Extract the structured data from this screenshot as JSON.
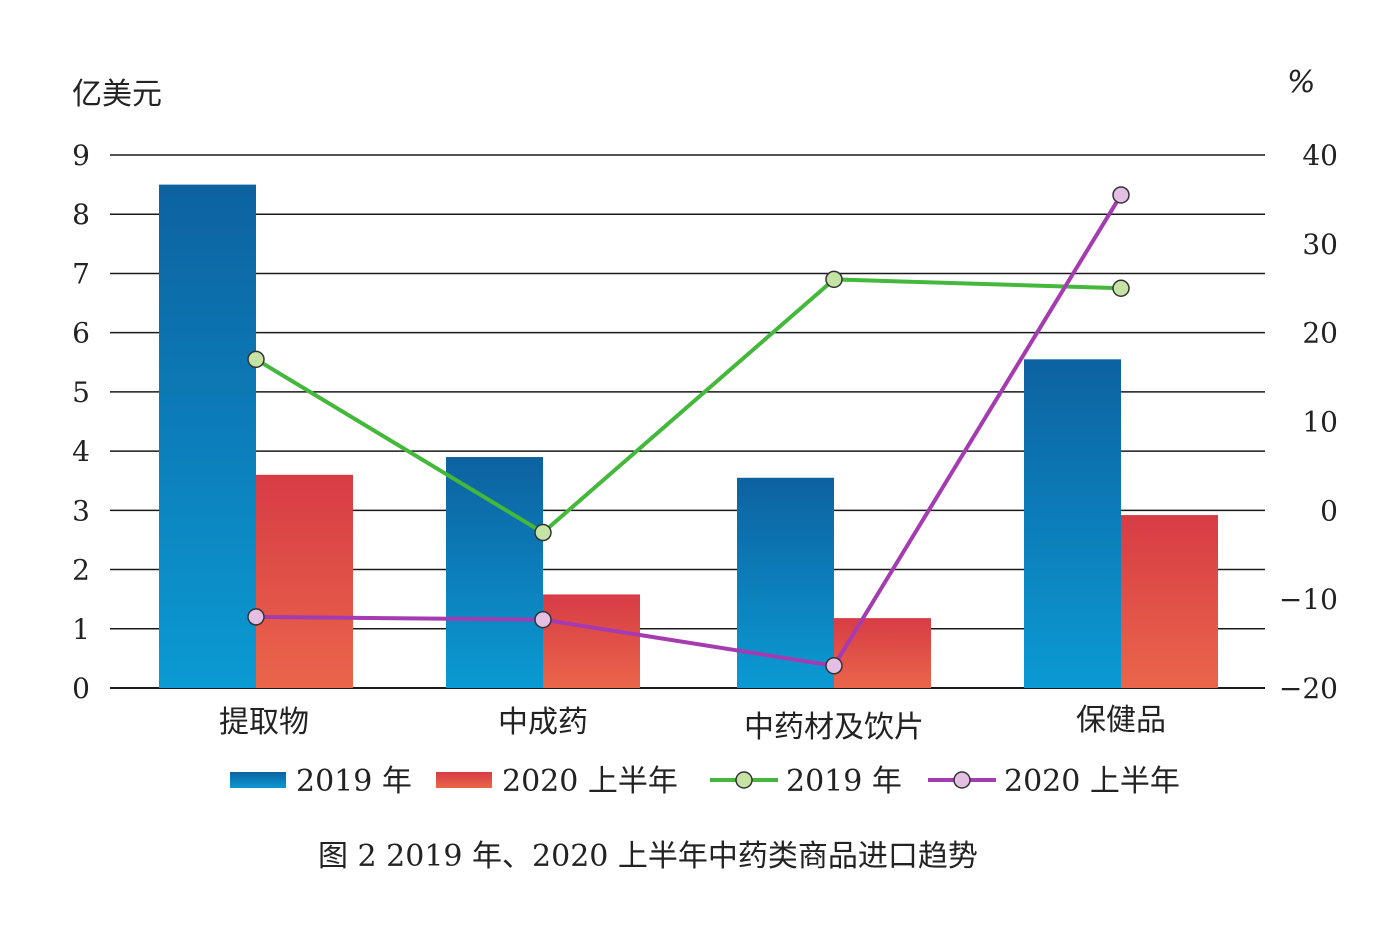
{
  "caption": "图 2   2019 年、2020 上半年中药类商品进口趋势",
  "chart_data": {
    "type": "bar",
    "categories": [
      "提取物",
      "中成药",
      "中药材及饮片",
      "保健品"
    ],
    "y_left": {
      "label": "亿美元",
      "lim": [
        0,
        9
      ],
      "ticks": [
        "0",
        "1",
        "2",
        "3",
        "4",
        "5",
        "6",
        "7",
        "8",
        "9"
      ]
    },
    "y_right": {
      "label": "%",
      "lim": [
        -20,
        40
      ],
      "ticks": [
        "−20",
        "−10",
        "0",
        "10",
        "20",
        "30",
        "40"
      ]
    },
    "grid": true,
    "legend_position": "bottom",
    "bar_series": [
      {
        "name": "2019 年",
        "values": [
          8.5,
          3.9,
          3.55,
          5.55
        ],
        "color_top": "#0d62a0",
        "color_bottom": "#0b9ad3"
      },
      {
        "name": "2020 上半年",
        "values": [
          3.6,
          1.58,
          1.18,
          2.92
        ],
        "color_top": "#d73c45",
        "color_bottom": "#ea654a"
      }
    ],
    "line_series": [
      {
        "name": "2019 年",
        "values": [
          17,
          -2.5,
          26,
          25
        ],
        "line_color": "#43b83a",
        "marker_fill": "#c6e3a6"
      },
      {
        "name": "2020 上半年",
        "values": [
          -12,
          -12.3,
          -17.5,
          35.5
        ],
        "line_color": "#a43bb0",
        "marker_fill": "#e4bfe3"
      }
    ]
  }
}
